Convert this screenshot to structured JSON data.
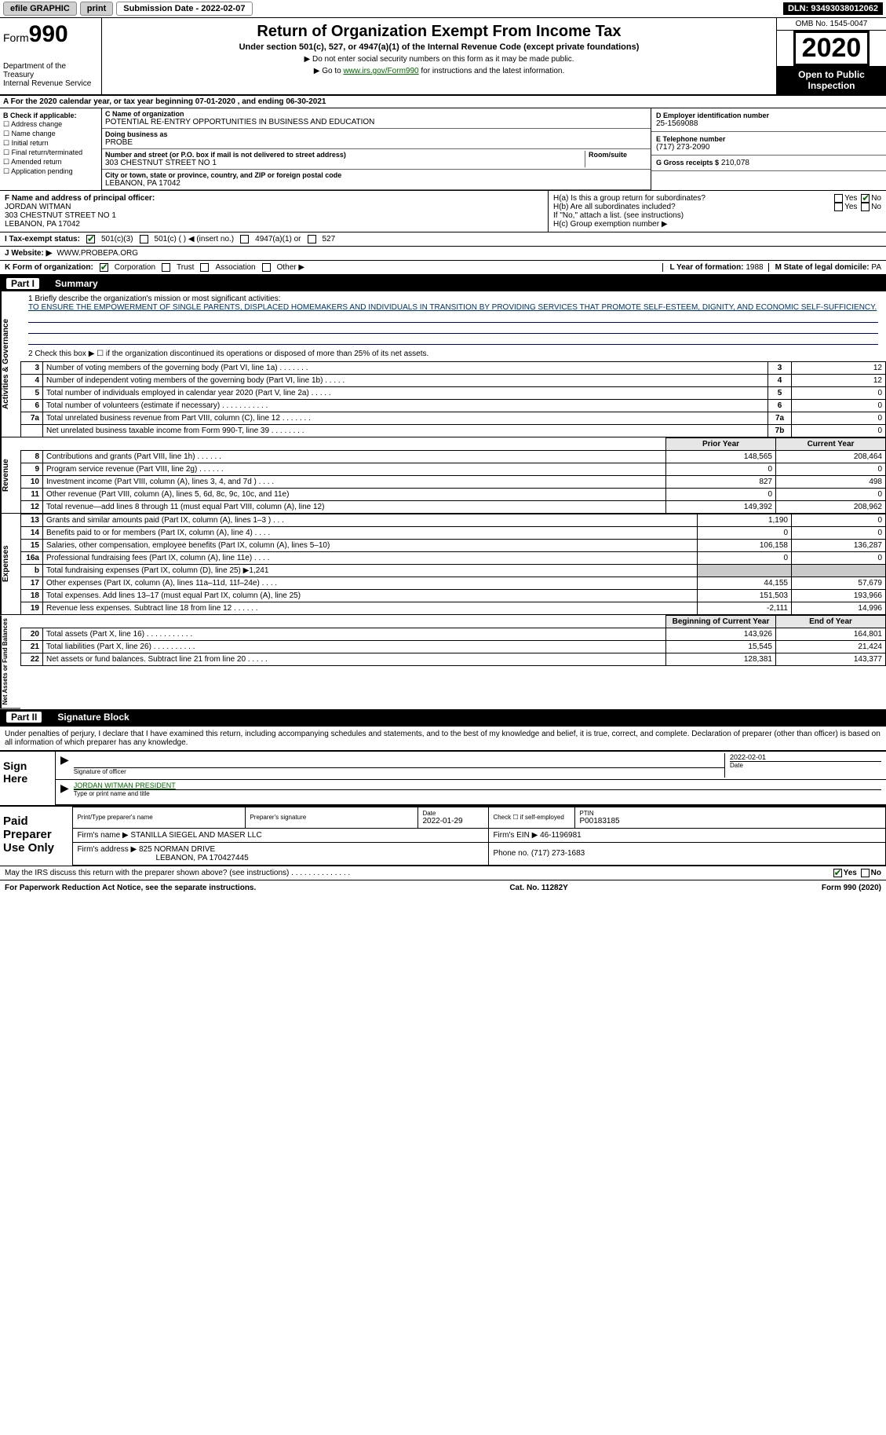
{
  "topbar": {
    "efile_label": "efile GRAPHIC",
    "print_label": "print",
    "submission_label": "Submission Date - 2022-02-07",
    "dln": "DLN: 93493038012062"
  },
  "form_header": {
    "form_label": "Form",
    "form_number": "990",
    "dept1": "Department of the Treasury",
    "dept2": "Internal Revenue Service",
    "title": "Return of Organization Exempt From Income Tax",
    "subtitle": "Under section 501(c), 527, or 4947(a)(1) of the Internal Revenue Code (except private foundations)",
    "note1": "▶ Do not enter social security numbers on this form as it may be made public.",
    "note2_prefix": "▶ Go to ",
    "note2_link": "www.irs.gov/Form990",
    "note2_suffix": " for instructions and the latest information.",
    "omb": "OMB No. 1545-0047",
    "year": "2020",
    "open_public": "Open to Public Inspection"
  },
  "period": {
    "line": "A For the 2020 calendar year, or tax year beginning 07-01-2020  , and ending 06-30-2021"
  },
  "block_b": {
    "label": "B Check if applicable:",
    "addr": "Address change",
    "name": "Name change",
    "initial": "Initial return",
    "final": "Final return/terminated",
    "amended": "Amended return",
    "app_pending": "Application pending"
  },
  "block_c": {
    "name_label": "C Name of organization",
    "name": "POTENTIAL RE-ENTRY OPPORTUNITIES IN BUSINESS AND EDUCATION",
    "dba_label": "Doing business as",
    "dba": "PROBE",
    "street_label": "Number and street (or P.O. box if mail is not delivered to street address)",
    "room_label": "Room/suite",
    "street": "303 CHESTNUT STREET NO 1",
    "city_label": "City or town, state or province, country, and ZIP or foreign postal code",
    "city": "LEBANON, PA  17042"
  },
  "block_d": {
    "label": "D Employer identification number",
    "value": "25-1569088"
  },
  "block_e": {
    "label": "E Telephone number",
    "value": "(717) 273-2090"
  },
  "block_g": {
    "label": "G Gross receipts $",
    "value": "210,078"
  },
  "block_f": {
    "label": "F Name and address of principal officer:",
    "name": "JORDAN WITMAN",
    "street": "303 CHESTNUT STREET NO 1",
    "city": "LEBANON, PA  17042"
  },
  "block_h": {
    "ha": "H(a)  Is this a group return for subordinates?",
    "hb": "H(b)  Are all subordinates included?",
    "hb_note": "If \"No,\" attach a list. (see instructions)",
    "hc": "H(c)  Group exemption number ▶",
    "yes": "Yes",
    "no": "No"
  },
  "row_i": {
    "label": "I    Tax-exempt status:",
    "c3": "501(c)(3)",
    "c": "501(c) (  ) ◀ (insert no.)",
    "a1": "4947(a)(1) or",
    "s527": "527"
  },
  "row_j": {
    "label": "J   Website: ▶",
    "value": "WWW.PROBEPA.ORG"
  },
  "row_k": {
    "label": "K Form of organization:",
    "corp": "Corporation",
    "trust": "Trust",
    "assoc": "Association",
    "other": "Other ▶",
    "l_label": "L Year of formation:",
    "l_value": "1988",
    "m_label": "M State of legal domicile:",
    "m_value": "PA"
  },
  "part1": {
    "label": "Part I",
    "title": "Summary",
    "q1": "1  Briefly describe the organization's mission or most significant activities:",
    "mission": "TO ENSURE THE EMPOWERMENT OF SINGLE PARENTS, DISPLACED HOMEMAKERS AND INDIVIDUALS IN TRANSITION BY PROVIDING SERVICES THAT PROMOTE SELF-ESTEEM, DIGNITY, AND ECONOMIC SELF-SUFFICIENCY.",
    "q2": "2  Check this box ▶ ☐  if the organization discontinued its operations or disposed of more than 25% of its net assets."
  },
  "side_labels": {
    "gov": "Activities & Governance",
    "rev": "Revenue",
    "exp": "Expenses",
    "net": "Net Assets or Fund Balances"
  },
  "lines_gov": [
    {
      "n": "3",
      "desc": "Number of voting members of the governing body (Part VI, line 1a)  .   .   .   .   .   .   .",
      "box": "3",
      "val": "12"
    },
    {
      "n": "4",
      "desc": "Number of independent voting members of the governing body (Part VI, line 1b)  .   .   .   .   .",
      "box": "4",
      "val": "12"
    },
    {
      "n": "5",
      "desc": "Total number of individuals employed in calendar year 2020 (Part V, line 2a)  .   .   .   .   .",
      "box": "5",
      "val": "0"
    },
    {
      "n": "6",
      "desc": "Total number of volunteers (estimate if necessary)  .   .   .   .   .   .   .   .   .   .   .",
      "box": "6",
      "val": "0"
    },
    {
      "n": "7a",
      "desc": "Total unrelated business revenue from Part VIII, column (C), line 12  .   .   .   .   .   .   .",
      "box": "7a",
      "val": "0"
    },
    {
      "n": "",
      "desc": "Net unrelated business taxable income from Form 990-T, line 39  .   .   .   .   .   .   .   .",
      "box": "7b",
      "val": "0"
    }
  ],
  "cols": {
    "prior": "Prior Year",
    "current": "Current Year"
  },
  "lines_rev": [
    {
      "n": "8",
      "desc": "Contributions and grants (Part VIII, line 1h)  .   .   .   .   .   .",
      "p": "148,565",
      "c": "208,464"
    },
    {
      "n": "9",
      "desc": "Program service revenue (Part VIII, line 2g)  .   .   .   .   .   .",
      "p": "0",
      "c": "0"
    },
    {
      "n": "10",
      "desc": "Investment income (Part VIII, column (A), lines 3, 4, and 7d )  .   .   .   .",
      "p": "827",
      "c": "498"
    },
    {
      "n": "11",
      "desc": "Other revenue (Part VIII, column (A), lines 5, 6d, 8c, 9c, 10c, and 11e)",
      "p": "0",
      "c": "0"
    },
    {
      "n": "12",
      "desc": "Total revenue—add lines 8 through 11 (must equal Part VIII, column (A), line 12)",
      "p": "149,392",
      "c": "208,962"
    }
  ],
  "lines_exp": [
    {
      "n": "13",
      "desc": "Grants and similar amounts paid (Part IX, column (A), lines 1–3 )  .   .   .",
      "p": "1,190",
      "c": "0"
    },
    {
      "n": "14",
      "desc": "Benefits paid to or for members (Part IX, column (A), line 4)  .   .   .   .",
      "p": "0",
      "c": "0"
    },
    {
      "n": "15",
      "desc": "Salaries, other compensation, employee benefits (Part IX, column (A), lines 5–10)",
      "p": "106,158",
      "c": "136,287"
    },
    {
      "n": "16a",
      "desc": "Professional fundraising fees (Part IX, column (A), line 11e)  .   .   .   .",
      "p": "0",
      "c": "0"
    },
    {
      "n": "b",
      "desc": "Total fundraising expenses (Part IX, column (D), line 25) ▶1,241",
      "p": "",
      "c": "",
      "shaded": true
    },
    {
      "n": "17",
      "desc": "Other expenses (Part IX, column (A), lines 11a–11d, 11f–24e)  .   .   .   .",
      "p": "44,155",
      "c": "57,679"
    },
    {
      "n": "18",
      "desc": "Total expenses. Add lines 13–17 (must equal Part IX, column (A), line 25)",
      "p": "151,503",
      "c": "193,966"
    },
    {
      "n": "19",
      "desc": "Revenue less expenses. Subtract line 18 from line 12  .   .   .   .   .   .",
      "p": "-2,111",
      "c": "14,996"
    }
  ],
  "cols2": {
    "begin": "Beginning of Current Year",
    "end": "End of Year"
  },
  "lines_net": [
    {
      "n": "20",
      "desc": "Total assets (Part X, line 16)  .   .   .   .   .   .   .   .   .   .   .",
      "p": "143,926",
      "c": "164,801"
    },
    {
      "n": "21",
      "desc": "Total liabilities (Part X, line 26)  .   .   .   .   .   .   .   .   .   .",
      "p": "15,545",
      "c": "21,424"
    },
    {
      "n": "22",
      "desc": "Net assets or fund balances. Subtract line 21 from line 20  .   .   .   .   .",
      "p": "128,381",
      "c": "143,377"
    }
  ],
  "part2": {
    "label": "Part II",
    "title": "Signature Block"
  },
  "penalties": "Under penalties of perjury, I declare that I have examined this return, including accompanying schedules and statements, and to the best of my knowledge and belief, it is true, correct, and complete. Declaration of preparer (other than officer) is based on all information of which preparer has any knowledge.",
  "sign": {
    "here": "Sign Here",
    "sig_officer": "Signature of officer",
    "date": "Date",
    "date_val": "2022-02-01",
    "officer": "JORDAN WITMAN  PRESIDENT",
    "type_name": "Type or print name and title"
  },
  "paid": {
    "label": "Paid Preparer Use Only",
    "print_name": "Print/Type preparer's name",
    "prep_sig": "Preparer's signature",
    "date_label": "Date",
    "date_val": "2022-01-29",
    "check_label": "Check ☐ if self-employed",
    "ptin_label": "PTIN",
    "ptin": "P00183185",
    "firm_name_label": "Firm's name    ▶",
    "firm_name": "STANILLA SIEGEL AND MASER LLC",
    "firm_ein_label": "Firm's EIN ▶",
    "firm_ein": "46-1196981",
    "firm_addr_label": "Firm's address ▶",
    "firm_addr1": "825 NORMAN DRIVE",
    "firm_addr2": "LEBANON, PA  170427445",
    "phone_label": "Phone no.",
    "phone": "(717) 273-1683"
  },
  "footer": {
    "discuss": "May the IRS discuss this return with the preparer shown above? (see instructions)  .   .   .   .   .   .   .   .   .   .   .   .   .   .",
    "yes": "Yes",
    "no": "No",
    "paperwork": "For Paperwork Reduction Act Notice, see the separate instructions.",
    "cat": "Cat. No. 11282Y",
    "form": "Form 990 (2020)"
  },
  "colors": {
    "link_green": "#006600",
    "black": "#000000",
    "shaded": "#c9c9c9",
    "header_bg": "#e6e6e6"
  }
}
